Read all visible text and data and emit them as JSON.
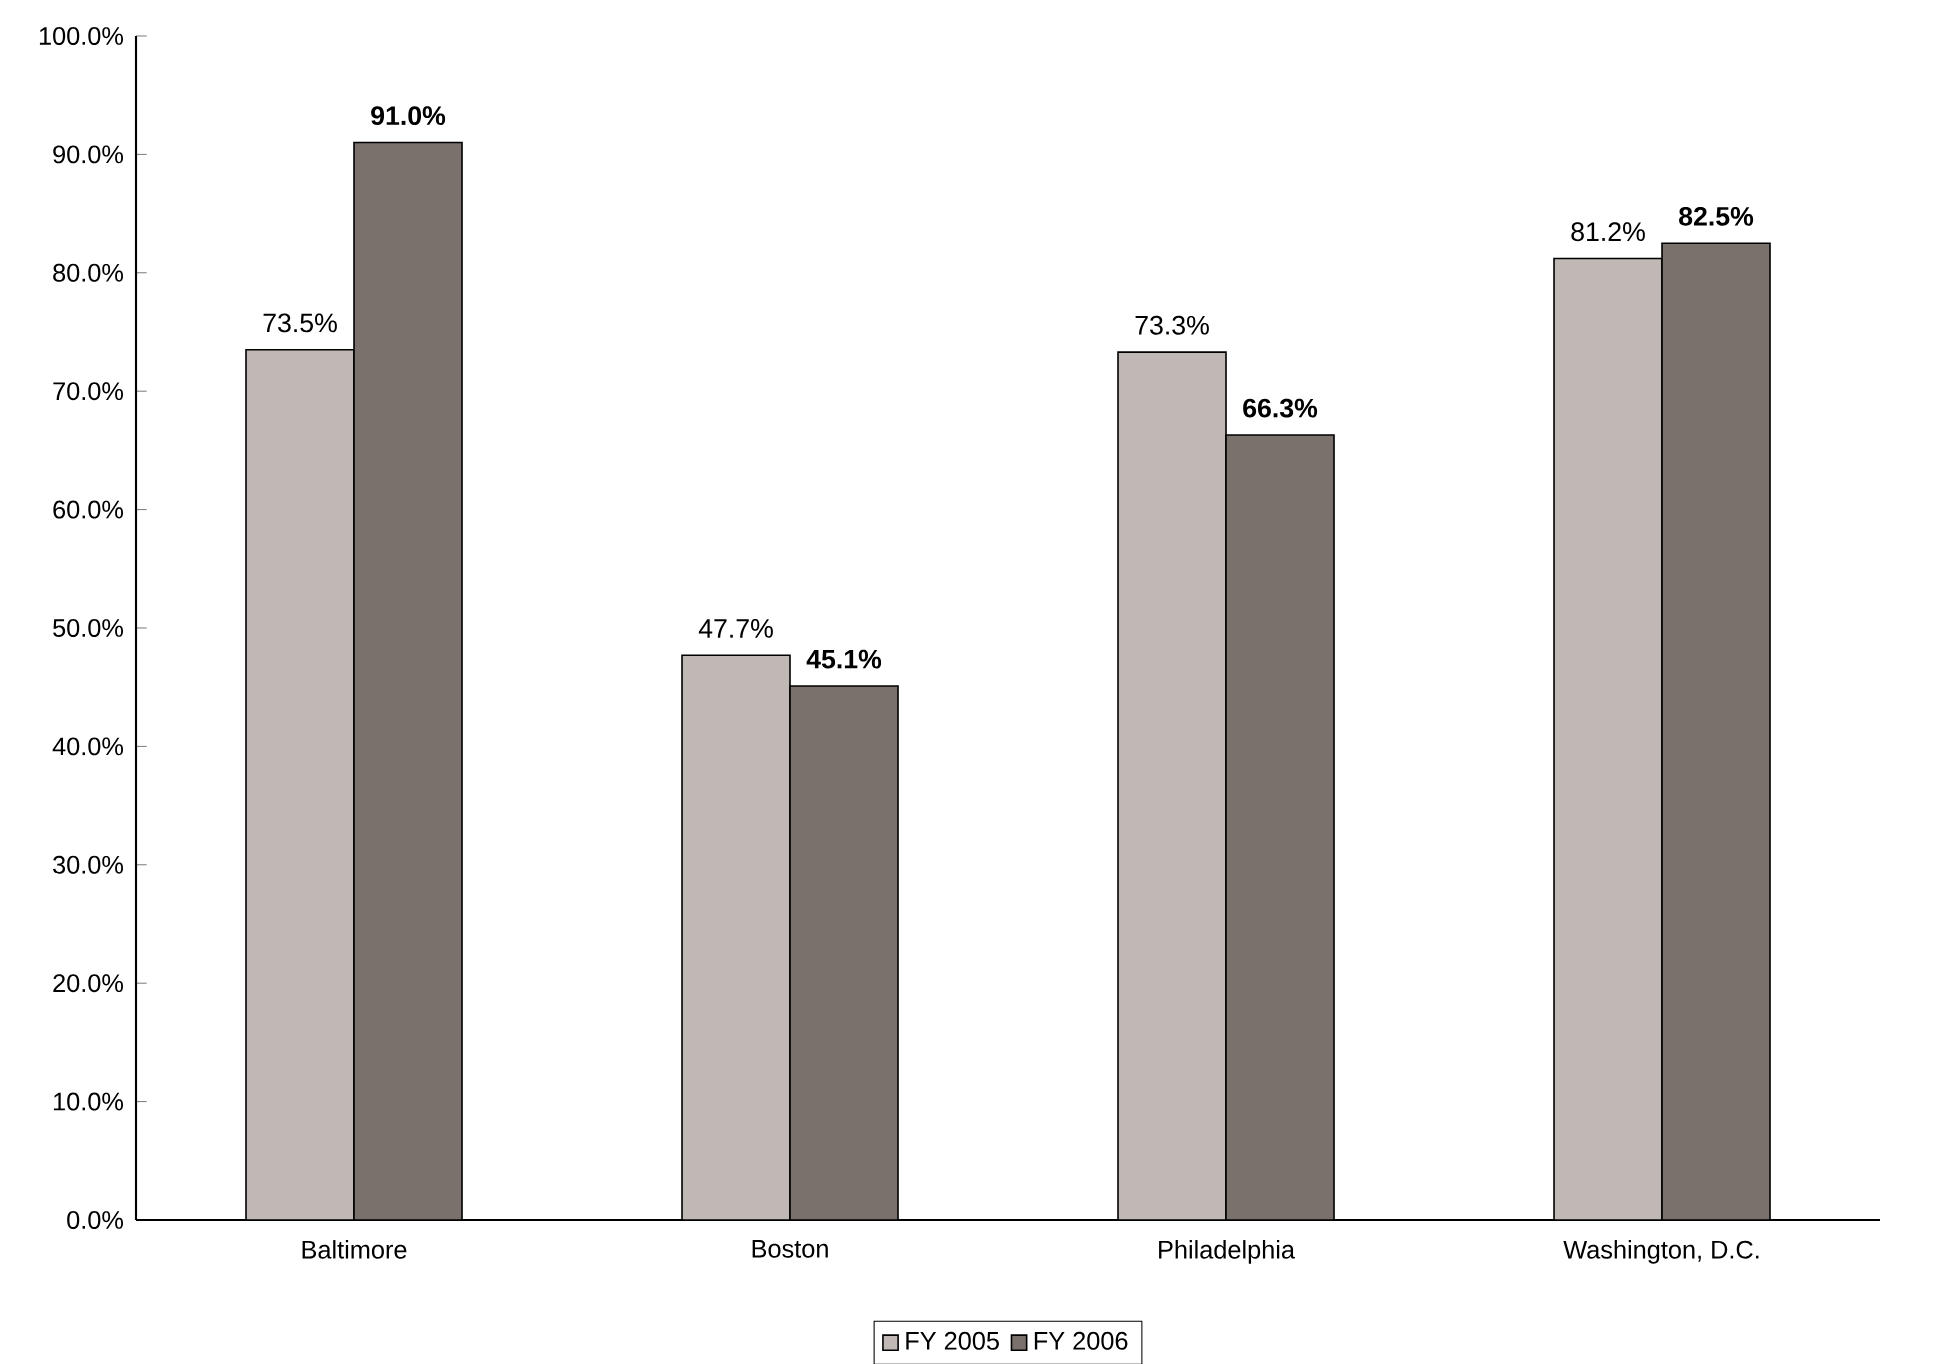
{
  "chart_data": {
    "type": "bar",
    "categories": [
      "Baltimore",
      "Boston",
      "Philadelphia",
      "Washington, D.C."
    ],
    "series": [
      {
        "name": "FY 2005",
        "color": "#c0b8b4",
        "values": [
          73.5,
          47.7,
          73.3,
          81.2
        ],
        "value_labels": [
          "73.5%",
          "47.7%",
          "73.3%",
          "81.2%"
        ]
      },
      {
        "name": "FY 2006",
        "color": "#7a706c",
        "values": [
          91.0,
          45.1,
          66.3,
          82.5
        ],
        "value_labels": [
          "91.0%",
          "45.1%",
          "66.3%",
          "82.5%"
        ]
      }
    ],
    "ylim": [
      0,
      100
    ],
    "yticks": [
      {
        "value": 0,
        "label": "0.0%"
      },
      {
        "value": 10,
        "label": "10.0%"
      },
      {
        "value": 20,
        "label": "20.0%"
      },
      {
        "value": 30,
        "label": "30.0%"
      },
      {
        "value": 40,
        "label": "40.0%"
      },
      {
        "value": 50,
        "label": "50.0%"
      },
      {
        "value": 60,
        "label": "60.0%"
      },
      {
        "value": 70,
        "label": "70.0%"
      },
      {
        "value": 80,
        "label": "80.0%"
      },
      {
        "value": 90,
        "label": "90.0%"
      },
      {
        "value": 100,
        "label": "100.0%"
      }
    ],
    "legend": "bottom",
    "grid": false
  }
}
